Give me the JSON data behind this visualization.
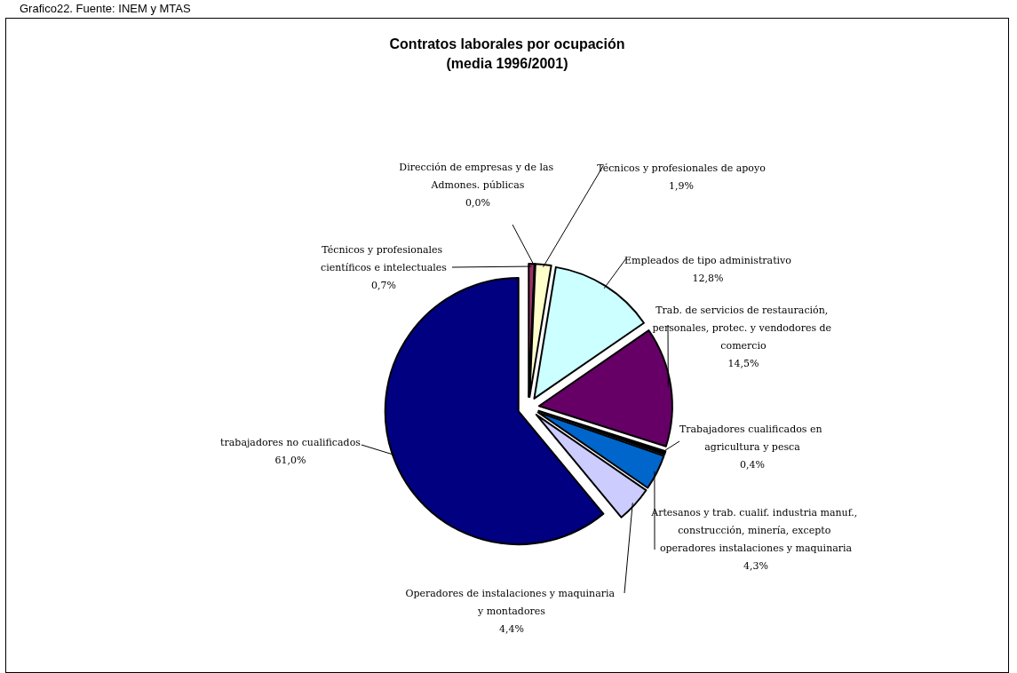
{
  "chart_data": {
    "type": "pie",
    "title": "Contratos laborales por ocupación\n(media 1996/2001)",
    "annotations": [
      "Grafico22. Fuente: INEM y MTAS"
    ],
    "categories": [
      "Técnicos y profesionales científicos e intelectuales",
      "Dirección de empresas y de las Admones. públicas",
      "Técnicos y profesionales de apoyo",
      "Empleados de tipo administrativo",
      "Trab. de servicios de restauración, personales, protec. y vendodores de comercio",
      "Trabajadores cualificados en agricultura y pesca",
      "Artesanos y trab. cualif. industria manuf., construcción, minería, excepto operadores instalaciones y maquinaria",
      "Operadores de instalaciones y maquinaria y montadores",
      "trabajadores no cualificados"
    ],
    "values": [
      0.7,
      0.0,
      1.9,
      12.8,
      14.5,
      0.4,
      4.3,
      4.4,
      61.0
    ],
    "value_labels": [
      "0,7%",
      "0,0%",
      "1,9%",
      "12,8%",
      "14,5%",
      "0,4%",
      "4,3%",
      "4,4%",
      "61,0%"
    ],
    "colors": [
      "#993366",
      "#000000",
      "#ffffcc",
      "#ccffff",
      "#660066",
      "#000000",
      "#0066cc",
      "#ccccff",
      "#000080"
    ],
    "legend": false
  }
}
